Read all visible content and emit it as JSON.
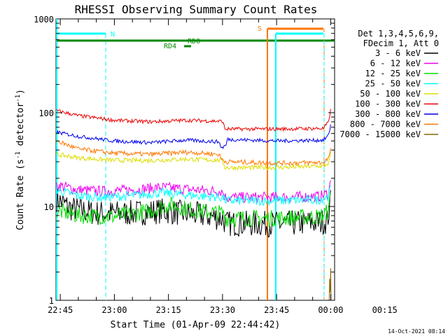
{
  "chart_data": {
    "type": "line",
    "title": "RHESSI Observing Summary Count Rates",
    "xlabel": "Start Time (01-Apr-09 22:44:42)",
    "ylabel_main": "Count Rate (s",
    "ylabel_exp1": "-1",
    "ylabel_mid": " detector",
    "ylabel_exp2": "-1",
    "ylabel_end": ")",
    "yscale": "log",
    "xlim_minutes": [
      -1,
      79
    ],
    "ylim": [
      1,
      1000
    ],
    "x_ticks": [
      {
        "m": 0,
        "label": "22:45"
      },
      {
        "m": 15,
        "label": "23:00"
      },
      {
        "m": 30,
        "label": "23:15"
      },
      {
        "m": 45,
        "label": "23:30"
      },
      {
        "m": 60,
        "label": "23:45"
      },
      {
        "m": 75,
        "label": "00:00"
      },
      {
        "m": 90,
        "label": "00:15"
      }
    ],
    "y_ticks": [
      {
        "v": 1,
        "label": "1"
      },
      {
        "v": 10,
        "label": "10"
      },
      {
        "v": 100,
        "label": "100"
      },
      {
        "v": 1000,
        "label": "1000"
      }
    ],
    "legend": {
      "header1": "Det 1,3,4,5,6,9,",
      "header2": "FDecim 1, Att 0",
      "placement": "right"
    },
    "series": [
      {
        "name": "3 - 6 keV",
        "color": "#000000",
        "points": [
          [
            -1,
            12
          ],
          [
            3,
            9.5
          ],
          [
            10,
            8.5
          ],
          [
            20,
            8.5
          ],
          [
            28,
            9
          ],
          [
            40,
            8
          ],
          [
            45,
            7.5
          ],
          [
            46,
            6.6
          ],
          [
            60,
            6.5
          ],
          [
            72,
            6.8
          ],
          [
            74,
            7
          ],
          [
            74.8,
            10
          ],
          [
            75,
            15
          ]
        ],
        "noise": 0.14
      },
      {
        "name": "6 - 12 keV",
        "color": "#ee00ee",
        "points": [
          [
            -1,
            17
          ],
          [
            5,
            15
          ],
          [
            12,
            14.5
          ],
          [
            20,
            15
          ],
          [
            28,
            16
          ],
          [
            38,
            15
          ],
          [
            45,
            14.5
          ],
          [
            45.8,
            12.5
          ],
          [
            60,
            12.5
          ],
          [
            72,
            12.8
          ],
          [
            74.5,
            14
          ],
          [
            75,
            19
          ]
        ],
        "noise": 0.06
      },
      {
        "name": "12 - 25 keV",
        "color": "#00dd00",
        "points": [
          [
            -1,
            9
          ],
          [
            5,
            8
          ],
          [
            15,
            7.8
          ],
          [
            25,
            9
          ],
          [
            30,
            10.5
          ],
          [
            38,
            9
          ],
          [
            45,
            8.5
          ],
          [
            46,
            7.5
          ],
          [
            60,
            7.5
          ],
          [
            72,
            7.8
          ],
          [
            74.5,
            9
          ],
          [
            75,
            14
          ]
        ],
        "noise": 0.09
      },
      {
        "name": "25 - 50 keV",
        "color": "#00ffff",
        "points": [
          [
            -1,
            15
          ],
          [
            5,
            13
          ],
          [
            12,
            12.5
          ],
          [
            20,
            13
          ],
          [
            28,
            14
          ],
          [
            38,
            13
          ],
          [
            45,
            12.5
          ],
          [
            46,
            11.5
          ],
          [
            60,
            11.5
          ],
          [
            72,
            11.8
          ],
          [
            74.5,
            13
          ],
          [
            75,
            17
          ]
        ],
        "noise": 0.05
      },
      {
        "name": "50 - 100 keV",
        "color": "#dddd00",
        "points": [
          [
            -1,
            36
          ],
          [
            5,
            33
          ],
          [
            15,
            31
          ],
          [
            25,
            31
          ],
          [
            35,
            32
          ],
          [
            45,
            31
          ],
          [
            45.7,
            26
          ],
          [
            60,
            26
          ],
          [
            73,
            27
          ],
          [
            74.5,
            29
          ],
          [
            75,
            38
          ]
        ],
        "noise": 0.025
      },
      {
        "name": "100 - 300 keV",
        "color": "#ee0000",
        "points": [
          [
            -1,
            105
          ],
          [
            5,
            93
          ],
          [
            15,
            83
          ],
          [
            25,
            80
          ],
          [
            35,
            83
          ],
          [
            45,
            81
          ],
          [
            45.7,
            67
          ],
          [
            60,
            67
          ],
          [
            73,
            68
          ],
          [
            74.5,
            80
          ],
          [
            75,
            110
          ]
        ],
        "noise": 0.02
      },
      {
        "name": "300 - 800 keV",
        "color": "#0000ee",
        "points": [
          [
            -1,
            62
          ],
          [
            5,
            56
          ],
          [
            15,
            50
          ],
          [
            25,
            48
          ],
          [
            35,
            51
          ],
          [
            44,
            49
          ],
          [
            44.7,
            42
          ],
          [
            46,
            45
          ],
          [
            46.3,
            52
          ],
          [
            60,
            50
          ],
          [
            73,
            51
          ],
          [
            74.5,
            58
          ],
          [
            75,
            75
          ]
        ],
        "noise": 0.02
      },
      {
        "name": "800 - 7000 keV",
        "color": "#ff7700",
        "points": [
          [
            -1,
            50
          ],
          [
            5,
            41
          ],
          [
            15,
            37
          ],
          [
            25,
            36
          ],
          [
            35,
            38
          ],
          [
            44,
            36
          ],
          [
            44.7,
            32
          ],
          [
            46,
            30
          ],
          [
            46.3,
            30
          ],
          [
            60,
            29
          ],
          [
            73,
            29.5
          ],
          [
            74.5,
            33
          ],
          [
            75,
            42
          ]
        ],
        "noise": 0.025
      },
      {
        "name": "7000 - 15000 keV",
        "color": "#886600",
        "points": [
          [
            74.6,
            1
          ],
          [
            74.7,
            1.7
          ],
          [
            74.9,
            1.2
          ],
          [
            75,
            2.2
          ],
          [
            75.1,
            1
          ]
        ],
        "noise": 0
      }
    ],
    "flags": [
      {
        "label": "N",
        "color": "#00ffff"
      },
      {
        "label": "S",
        "color": "#ff7700"
      },
      {
        "label": "RD4",
        "color": "#008800"
      },
      {
        "label": "RD0",
        "color": "#008800"
      }
    ],
    "timestamp": "14-Oct-2021 08:14"
  }
}
